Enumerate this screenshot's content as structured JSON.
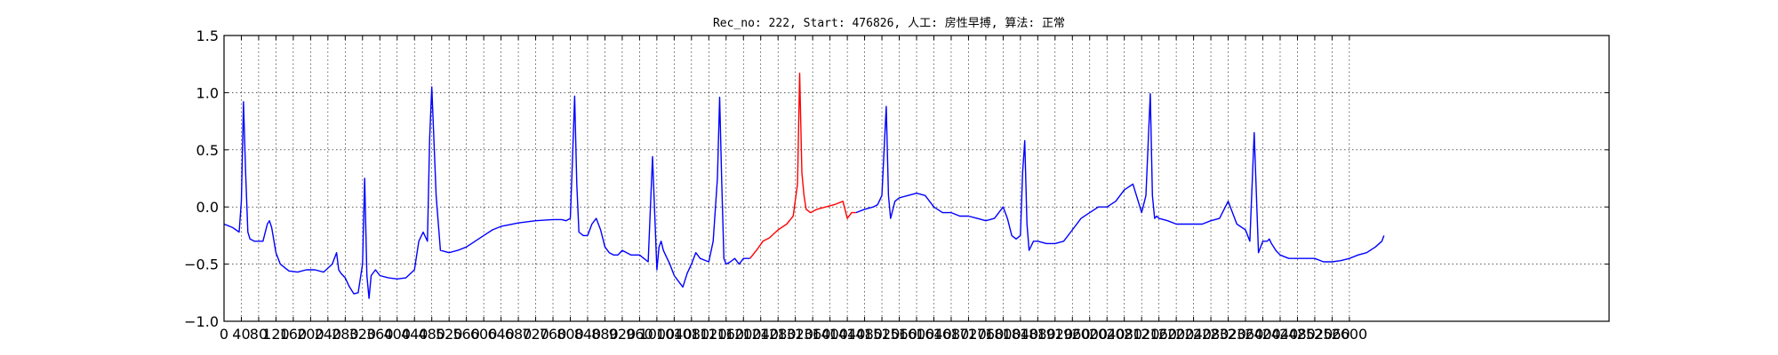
{
  "chart_data": {
    "type": "line",
    "title": "Rec_no: 222, Start: 476826, 人工: 房性早搏, 算法: 正常",
    "xlabel": "",
    "ylabel": "",
    "xlim": [
      0,
      3200
    ],
    "ylim": [
      -1.0,
      1.5
    ],
    "grid": true,
    "yticks": [
      -1.0,
      -0.5,
      0.0,
      0.5,
      1.0,
      1.5
    ],
    "ytick_labels": [
      "−1.0",
      "−0.5",
      "0.0",
      "0.5",
      "1.0",
      "1.5"
    ],
    "xticks": [
      0,
      40,
      80,
      120,
      160,
      200,
      240,
      280,
      320,
      360,
      400,
      440,
      480,
      520,
      560,
      600,
      640,
      680,
      720,
      760,
      800,
      840,
      880,
      920,
      960,
      1000,
      1040,
      1080,
      1120,
      1160,
      1200,
      1240,
      1280,
      1320,
      1360,
      1400,
      1440,
      1480,
      1520,
      1560,
      1600,
      1640,
      1680,
      1720,
      1760,
      1800,
      1840,
      1880,
      1920,
      1960,
      2000,
      2040,
      2080,
      2120,
      2160,
      2200,
      2240,
      2280,
      2320,
      2360,
      2400,
      2440,
      2480,
      2520,
      2560,
      2600
    ],
    "series": [
      {
        "color": "#0000ff",
        "x": [
          0,
          20,
          35,
          40,
          45,
          50,
          55,
          60,
          70,
          80,
          90,
          100,
          105,
          110,
          120,
          130,
          150,
          170,
          190,
          210,
          230,
          250,
          260,
          265,
          270,
          280,
          290,
          300,
          310,
          320,
          325,
          330,
          335,
          340,
          350,
          360,
          380,
          400,
          420,
          440,
          450,
          460,
          470,
          475,
          480,
          490,
          500,
          520,
          540,
          560,
          580,
          600,
          620,
          640,
          680,
          720,
          760,
          780,
          790,
          800,
          805,
          810,
          815,
          820,
          830,
          840,
          850,
          860,
          870,
          880,
          890,
          900,
          910,
          920,
          940,
          960,
          980,
          990,
          1000,
          1005,
          1010,
          1015,
          1020,
          1030,
          1040,
          1050,
          1060,
          1070,
          1080,
          1090,
          1100,
          1120,
          1130,
          1140,
          1145,
          1150,
          1155,
          1160,
          1170,
          1180,
          1190,
          1200,
          1215
        ],
        "y": [
          -0.15,
          -0.18,
          -0.22,
          0.05,
          0.92,
          0.3,
          -0.22,
          -0.28,
          -0.3,
          -0.3,
          -0.3,
          -0.15,
          -0.12,
          -0.18,
          -0.4,
          -0.5,
          -0.56,
          -0.57,
          -0.55,
          -0.55,
          -0.57,
          -0.5,
          -0.4,
          -0.55,
          -0.58,
          -0.62,
          -0.7,
          -0.76,
          -0.75,
          -0.5,
          0.25,
          -0.6,
          -0.8,
          -0.6,
          -0.55,
          -0.6,
          -0.62,
          -0.63,
          -0.62,
          -0.55,
          -0.3,
          -0.22,
          -0.3,
          0.6,
          1.05,
          0.1,
          -0.38,
          -0.4,
          -0.38,
          -0.35,
          -0.3,
          -0.25,
          -0.2,
          -0.17,
          -0.14,
          -0.12,
          -0.11,
          -0.11,
          -0.12,
          -0.1,
          0.4,
          0.97,
          0.2,
          -0.22,
          -0.25,
          -0.25,
          -0.15,
          -0.1,
          -0.2,
          -0.35,
          -0.4,
          -0.42,
          -0.42,
          -0.38,
          -0.42,
          -0.42,
          -0.48,
          0.44,
          -0.55,
          -0.35,
          -0.3,
          -0.38,
          -0.42,
          -0.5,
          -0.6,
          -0.65,
          -0.7,
          -0.58,
          -0.5,
          -0.4,
          -0.45,
          -0.48,
          -0.3,
          0.25,
          0.96,
          0.2,
          -0.45,
          -0.5,
          -0.48,
          -0.45,
          -0.5,
          -0.45,
          -0.45
        ]
      },
      {
        "color": "#ff0000",
        "x": [
          1215,
          1230,
          1245,
          1260,
          1280,
          1300,
          1315,
          1325,
          1330,
          1335,
          1340,
          1345,
          1355,
          1370,
          1390,
          1410,
          1430,
          1440,
          1450,
          1460
        ],
        "y": [
          -0.45,
          -0.38,
          -0.3,
          -0.27,
          -0.2,
          -0.15,
          -0.08,
          0.2,
          1.17,
          0.3,
          0.1,
          -0.02,
          -0.05,
          -0.02,
          0.0,
          0.02,
          0.05,
          -0.1,
          -0.05,
          -0.05
        ]
      },
      {
        "color": "#0000ff",
        "x": [
          1460,
          1480,
          1500,
          1510,
          1520,
          1525,
          1530,
          1535,
          1540,
          1550,
          1560,
          1580,
          1600,
          1620,
          1640,
          1660,
          1680,
          1700,
          1720,
          1740,
          1760,
          1780,
          1800,
          1810,
          1820,
          1830,
          1840,
          1845,
          1850,
          1855,
          1860,
          1870,
          1880,
          1900,
          1920,
          1940,
          1960,
          1980,
          2000,
          2020,
          2040,
          2060,
          2080,
          2100,
          2120,
          2130,
          2140,
          2145,
          2150,
          2155,
          2160,
          2180,
          2200,
          2220,
          2240,
          2260,
          2280,
          2300,
          2320,
          2340,
          2360,
          2370,
          2380,
          2390,
          2400,
          2410,
          2415,
          2420,
          2425,
          2430,
          2440,
          2460,
          2480,
          2500,
          2520,
          2540,
          2560,
          2580,
          2600,
          2620,
          2640,
          2660,
          2675,
          2680
        ],
        "y": [
          -0.05,
          -0.02,
          0.0,
          0.02,
          0.1,
          0.5,
          0.88,
          0.1,
          -0.1,
          0.05,
          0.08,
          0.1,
          0.12,
          0.1,
          0.0,
          -0.05,
          -0.05,
          -0.08,
          -0.08,
          -0.1,
          -0.12,
          -0.1,
          0.0,
          -0.1,
          -0.25,
          -0.28,
          -0.25,
          0.3,
          0.58,
          -0.15,
          -0.38,
          -0.3,
          -0.3,
          -0.32,
          -0.32,
          -0.3,
          -0.2,
          -0.1,
          -0.05,
          0.0,
          0.0,
          0.05,
          0.15,
          0.2,
          -0.05,
          0.1,
          0.99,
          0.1,
          -0.1,
          -0.08,
          -0.1,
          -0.12,
          -0.15,
          -0.15,
          -0.15,
          -0.15,
          -0.12,
          -0.1,
          0.05,
          -0.15,
          -0.2,
          -0.3,
          0.65,
          -0.4,
          -0.3,
          -0.3,
          -0.28,
          -0.32,
          -0.35,
          -0.38,
          -0.42,
          -0.45,
          -0.45,
          -0.45,
          -0.45,
          -0.48,
          -0.48,
          -0.47,
          -0.45,
          -0.42,
          -0.4,
          -0.35,
          -0.3,
          -0.25
        ]
      }
    ]
  }
}
